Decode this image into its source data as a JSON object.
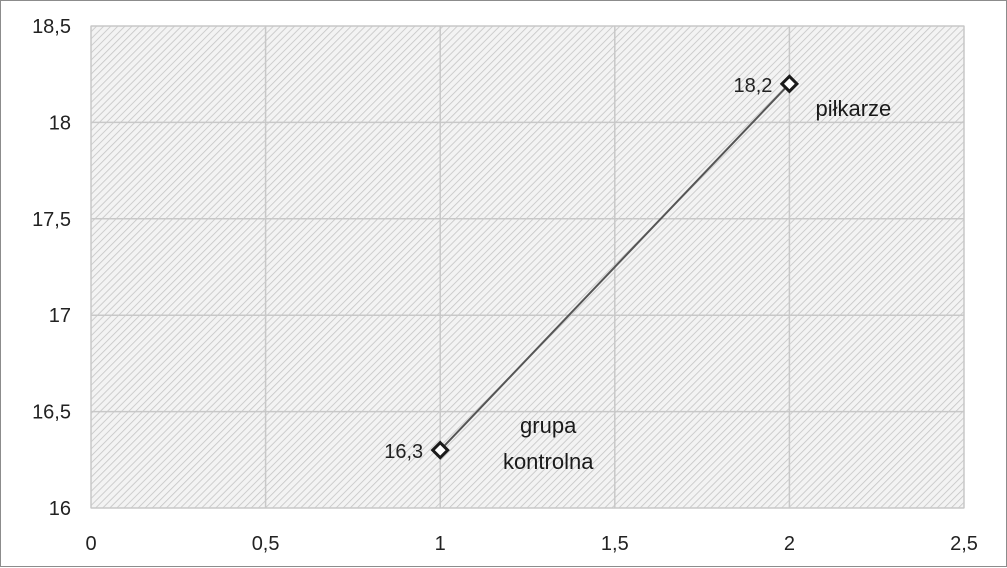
{
  "chart_data": {
    "type": "scatter",
    "title": "",
    "xlabel": "",
    "ylabel": "",
    "xlim": [
      0,
      2.5
    ],
    "ylim": [
      16,
      18.5
    ],
    "x_ticks": [
      "0",
      "0,5",
      "1",
      "1,5",
      "2",
      "2,5"
    ],
    "y_ticks": [
      "16",
      "16,5",
      "17",
      "17,5",
      "18",
      "18,5"
    ],
    "grid": true,
    "legend": "none",
    "series": [
      {
        "points": [
          {
            "x": 1,
            "y": 16.3,
            "value_label": "16,3",
            "name_lines": [
              "grupa",
              "kontrolna"
            ]
          },
          {
            "x": 2,
            "y": 18.2,
            "value_label": "18,2",
            "name_lines": [
              "piłkarze"
            ]
          }
        ],
        "connected": true
      }
    ],
    "colors": {
      "line": "#555555",
      "marker_stroke": "#1a1a1a",
      "marker_fill": "#ffffff",
      "grid": "#c8c8c8",
      "hatch": "#c4c4c4",
      "plot_bg": "#f3f3f3"
    }
  }
}
